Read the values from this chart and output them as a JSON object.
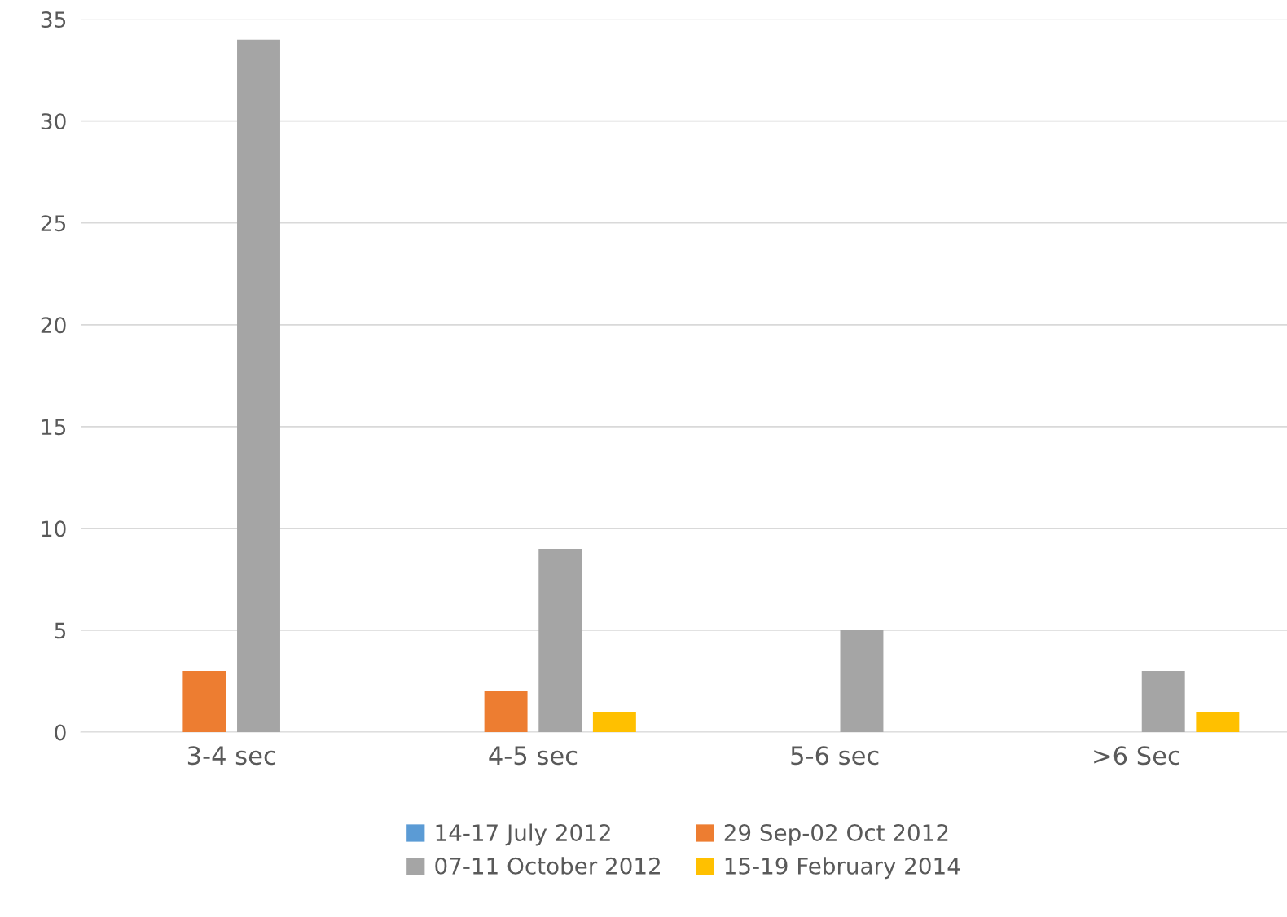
{
  "chart_data": {
    "type": "bar",
    "categories": [
      "3-4 sec",
      "4-5 sec",
      "5-6 sec",
      ">6 Sec"
    ],
    "series": [
      {
        "name": "14-17 July 2012",
        "color": "#5b9bd5",
        "values": [
          0,
          0,
          0,
          0
        ]
      },
      {
        "name": "29 Sep-02 Oct 2012",
        "color": "#ed7d31",
        "values": [
          3,
          2,
          0,
          0
        ]
      },
      {
        "name": "07-11 October 2012",
        "color": "#a5a5a5",
        "values": [
          34,
          9,
          5,
          3
        ]
      },
      {
        "name": "15-19 February 2014",
        "color": "#ffc000",
        "values": [
          0,
          1,
          0,
          1
        ]
      }
    ],
    "ylim": [
      0,
      35
    ],
    "yticks": [
      0,
      5,
      10,
      15,
      20,
      25,
      30,
      35
    ],
    "grid": "y",
    "legend": "bottom"
  }
}
